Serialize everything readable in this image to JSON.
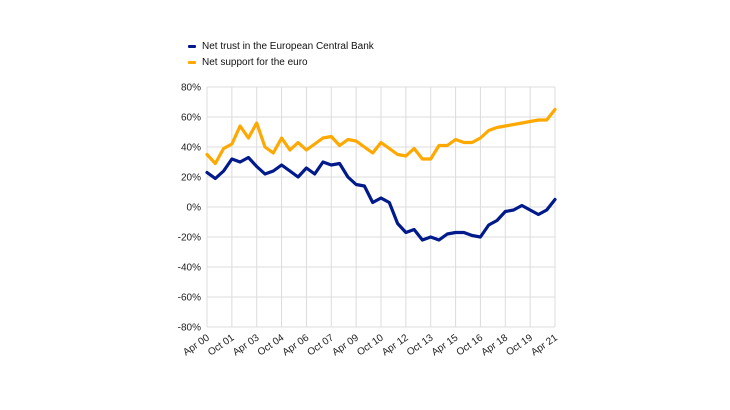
{
  "chart_data": {
    "type": "line",
    "title": "",
    "xlabel": "",
    "ylabel": "",
    "ylim": [
      -80,
      80
    ],
    "y_ticks": [
      "80%",
      "60%",
      "40%",
      "20%",
      "0%",
      "-20%",
      "-40%",
      "-60%",
      "-80%"
    ],
    "y_tick_values": [
      80,
      60,
      40,
      20,
      0,
      -20,
      -40,
      -60,
      -80
    ],
    "x": [
      "Apr 00",
      "Oct 00",
      "Apr 01",
      "Oct 01",
      "Apr 02",
      "Oct 02",
      "Apr 03",
      "Oct 03",
      "Apr 04",
      "Oct 04",
      "Apr 05",
      "Oct 05",
      "Apr 06",
      "Oct 06",
      "Apr 07",
      "Oct 07",
      "Apr 08",
      "Oct 08",
      "Apr 09",
      "Oct 09",
      "Apr 10",
      "Oct 10",
      "Apr 11",
      "Oct 11",
      "Apr 12",
      "Oct 12",
      "Apr 13",
      "Oct 13",
      "Apr 14",
      "Oct 14",
      "Apr 15",
      "Oct 15",
      "Apr 16",
      "Oct 16",
      "Apr 17",
      "Oct 17",
      "Apr 18",
      "Oct 18",
      "Apr 19",
      "Oct 19",
      "Apr 20",
      "Oct 20",
      "Apr 21"
    ],
    "x_tick_labels": [
      "Apr 00",
      "Oct 01",
      "Apr 03",
      "Oct 04",
      "Apr 06",
      "Oct 07",
      "Apr 09",
      "Oct 10",
      "Apr 12",
      "Oct 13",
      "Apr 15",
      "Oct 16",
      "Apr 18",
      "Oct 19",
      "Apr 21"
    ],
    "grid": true,
    "legend_position": "top-left",
    "series": [
      {
        "name": "Net trust in the European Central Bank",
        "color": "#001A8C",
        "values": [
          23,
          19,
          24,
          32,
          30,
          33,
          27,
          22,
          24,
          28,
          24,
          20,
          26,
          22,
          30,
          28,
          29,
          20,
          15,
          14,
          3,
          6,
          3,
          -11,
          -17,
          -15,
          -22,
          -20,
          -22,
          -18,
          -17,
          -17,
          -19,
          -20,
          -12,
          -9,
          -3,
          -2,
          1,
          -2,
          -5,
          -2,
          5
        ]
      },
      {
        "name": "Net support for the euro",
        "color": "#FFA800",
        "values": [
          35,
          29,
          39,
          42,
          54,
          46,
          56,
          40,
          36,
          46,
          38,
          43,
          38,
          42,
          46,
          47,
          41,
          45,
          44,
          40,
          36,
          43,
          39,
          35,
          34,
          39,
          32,
          32,
          41,
          41,
          45,
          43,
          43,
          46,
          51,
          53,
          54,
          55,
          56,
          57,
          58,
          58,
          65
        ]
      }
    ]
  }
}
